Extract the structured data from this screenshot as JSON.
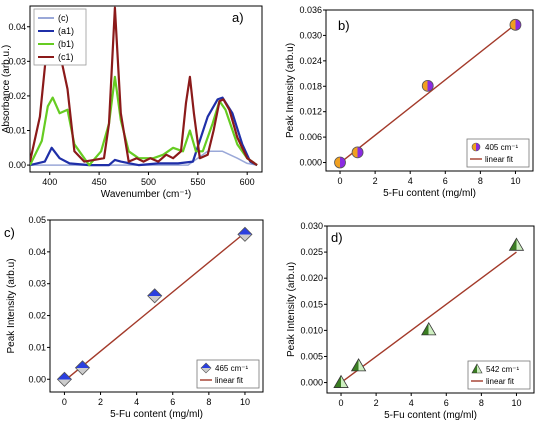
{
  "chart_data": [
    {
      "panel": "a)",
      "type": "line",
      "xlabel": "Wavenumber (cm⁻¹)",
      "ylabel": "Absorbance (arb.u.)",
      "xlim": [
        380,
        615
      ],
      "ylim": [
        -0.002,
        0.046
      ],
      "xticks": [
        "400",
        "450",
        "500",
        "550",
        "600"
      ],
      "yticks": [
        "0.00",
        "0.01",
        "0.02",
        "0.03",
        "0.04"
      ],
      "legend": "top-left",
      "series": [
        {
          "name": "(c)",
          "color": "#9aa8d8",
          "x": [
            380,
            400,
            420,
            440,
            460,
            480,
            500,
            520,
            540,
            560,
            575,
            590,
            600,
            610
          ],
          "y": [
            0,
            0,
            0,
            0,
            0,
            0,
            0,
            0,
            0,
            0.004,
            0.004,
            0.002,
            0.0005,
            0
          ]
        },
        {
          "name": "(a1)",
          "color": "#1f2fa8",
          "x": [
            380,
            395,
            402,
            410,
            420,
            440,
            460,
            466,
            472,
            490,
            510,
            530,
            545,
            560,
            570,
            575,
            585,
            595,
            603,
            610
          ],
          "y": [
            0,
            0.001,
            0.005,
            0.002,
            0.0005,
            0,
            0,
            0.0015,
            0.001,
            0,
            0.0005,
            0.0005,
            0.001,
            0.014,
            0.019,
            0.0195,
            0.015,
            0.006,
            0.001,
            0
          ]
        },
        {
          "name": "(b1)",
          "color": "#66cc22",
          "x": [
            380,
            392,
            398,
            403,
            410,
            418,
            425,
            440,
            452,
            460,
            466,
            472,
            480,
            490,
            505,
            515,
            525,
            535,
            542,
            548,
            555,
            565,
            572,
            578,
            590,
            600,
            610
          ],
          "y": [
            0,
            0.007,
            0.017,
            0.0195,
            0.015,
            0.016,
            0.006,
            0,
            0.004,
            0.012,
            0.0255,
            0.013,
            0.004,
            0.002,
            0.002,
            0.003,
            0.005,
            0.004,
            0.01,
            0.004,
            0.004,
            0.012,
            0.0185,
            0.016,
            0.006,
            0.002,
            0
          ]
        },
        {
          "name": "(c1)",
          "color": "#8b1a1a",
          "x": [
            380,
            390,
            396,
            400,
            406,
            412,
            418,
            425,
            435,
            445,
            455,
            460,
            466,
            472,
            480,
            488,
            495,
            502,
            510,
            518,
            525,
            533,
            538,
            542,
            546,
            552,
            560,
            566,
            572,
            576,
            582,
            590,
            600,
            610
          ],
          "y": [
            0.001,
            0.014,
            0.031,
            0.0325,
            0.0325,
            0.03,
            0.022,
            0.004,
            0.001,
            0.0015,
            0.002,
            0.012,
            0.0455,
            0.015,
            0.001,
            0.002,
            0.001,
            0.002,
            0.001,
            0.003,
            0.002,
            0.004,
            0.018,
            0.0255,
            0.015,
            0.002,
            0.003,
            0.01,
            0.0185,
            0.019,
            0.016,
            0.008,
            0.002,
            0
          ]
        }
      ]
    },
    {
      "panel": "b)",
      "type": "scatter",
      "xlabel": "5-Fu content (mg/ml)",
      "ylabel": "Peak Intensity (arb.u)",
      "xlim": [
        -0.8,
        11
      ],
      "ylim": [
        -0.002,
        0.036
      ],
      "xticks": [
        "0",
        "2",
        "4",
        "6",
        "8",
        "10"
      ],
      "yticks": [
        "0.000",
        "0.006",
        "0.012",
        "0.018",
        "0.024",
        "0.030",
        "0.036"
      ],
      "marker": "circle",
      "legend": "bottom-right",
      "series": [
        {
          "name": "405 cm⁻¹",
          "x": [
            0,
            1,
            5,
            10
          ],
          "y": [
            0.0,
            0.0024,
            0.0181,
            0.0325
          ],
          "color_a": "#f0a020",
          "color_b": "#8a2be2"
        },
        {
          "name": "linear fit",
          "color": "#a33a2a",
          "fit": {
            "slope": 0.00327,
            "intercept": -0.0001
          },
          "x_range": [
            0,
            10
          ]
        }
      ]
    },
    {
      "panel": "c)",
      "type": "scatter",
      "xlabel": "5-Fu content (mg/ml)",
      "ylabel": "Peak Intensity (arb.u)",
      "xlim": [
        -0.8,
        11
      ],
      "ylim": [
        -0.004,
        0.05
      ],
      "xticks": [
        "0",
        "2",
        "4",
        "6",
        "8",
        "10"
      ],
      "yticks": [
        "0.00",
        "0.01",
        "0.02",
        "0.03",
        "0.04",
        "0.05"
      ],
      "marker": "diamond",
      "legend": "bottom-right",
      "series": [
        {
          "name": "465 cm⁻¹",
          "x": [
            0,
            1,
            5,
            10
          ],
          "y": [
            0.0,
            0.0036,
            0.0262,
            0.0455
          ],
          "color_a": "#2a3fe0",
          "color_b": "#cccccc"
        },
        {
          "name": "linear fit",
          "color": "#a33a2a",
          "fit": {
            "slope": 0.00465,
            "intercept": -0.0005
          },
          "x_range": [
            0,
            10
          ]
        }
      ]
    },
    {
      "panel": "d)",
      "type": "scatter",
      "xlabel": "5-Fu content (mg/ml)",
      "ylabel": "Peak Intensity (arb.u)",
      "xlim": [
        -0.8,
        11
      ],
      "ylim": [
        -0.002,
        0.03
      ],
      "xticks": [
        "0",
        "2",
        "4",
        "6",
        "8",
        "10"
      ],
      "yticks": [
        "0.000",
        "0.005",
        "0.010",
        "0.015",
        "0.020",
        "0.025",
        "0.030"
      ],
      "marker": "triangle",
      "legend": "bottom-right",
      "series": [
        {
          "name": "542 cm⁻¹",
          "x": [
            0,
            1,
            5,
            10
          ],
          "y": [
            0.0,
            0.0032,
            0.0101,
            0.0263
          ],
          "color_a": "#3a7d22",
          "color_b": "#cdeec0"
        },
        {
          "name": "linear fit",
          "color": "#a33a2a",
          "fit": {
            "slope": 0.0025,
            "intercept": 0.0
          },
          "x_range": [
            0,
            10
          ]
        }
      ]
    }
  ]
}
